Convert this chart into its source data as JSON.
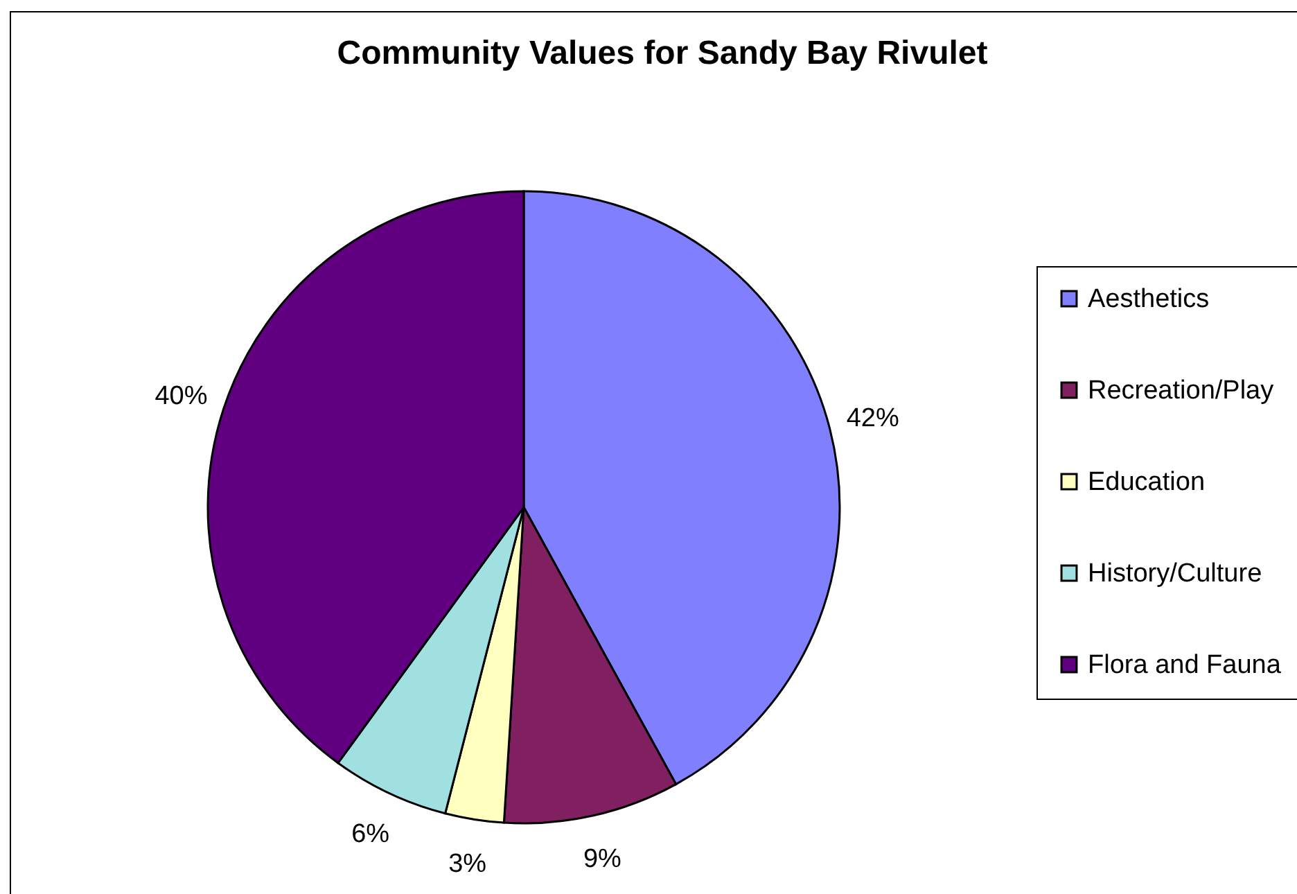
{
  "chart_data": {
    "type": "pie",
    "title": "Community Values for Sandy Bay Rivulet",
    "categories": [
      "Aesthetics",
      "Recreation/Play",
      "Education",
      "History/Culture",
      "Flora and Fauna"
    ],
    "values": [
      42,
      9,
      3,
      6,
      40
    ],
    "colors": [
      "#8080ff",
      "#802060",
      "#ffffc0",
      "#a0e0e0",
      "#600080"
    ],
    "value_labels": [
      "42%",
      "9%",
      "3%",
      "6%",
      "40%"
    ],
    "legend": "right"
  }
}
